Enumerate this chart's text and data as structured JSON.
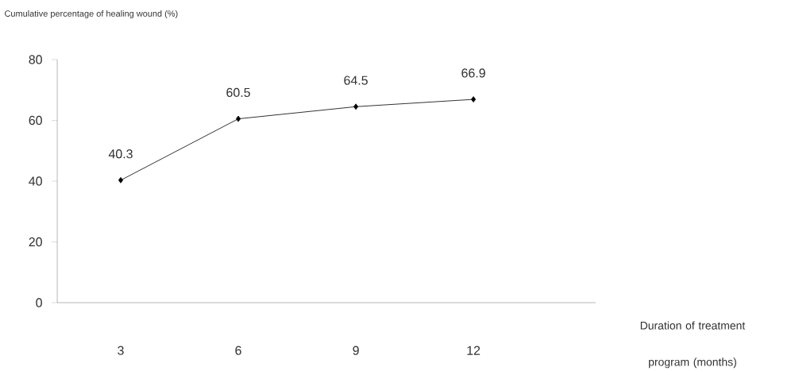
{
  "chart_data": {
    "type": "line",
    "ylabel": "Cumulative percentage of healing wound (%)",
    "xlabel": "Duration of treatment program (months)",
    "categories": [
      "3",
      "6",
      "9",
      "12"
    ],
    "series": [
      {
        "color": "#000000",
        "values": [
          40.3,
          60.5,
          64.5,
          66.9
        ]
      }
    ],
    "value_labels": [
      "40.3",
      "60.5",
      "64.5",
      "66.9"
    ],
    "ylim": [
      0,
      80
    ],
    "yticks": [
      0,
      20,
      40,
      60,
      80
    ],
    "marker": "diamond",
    "line_style": "solid",
    "grid": false
  }
}
